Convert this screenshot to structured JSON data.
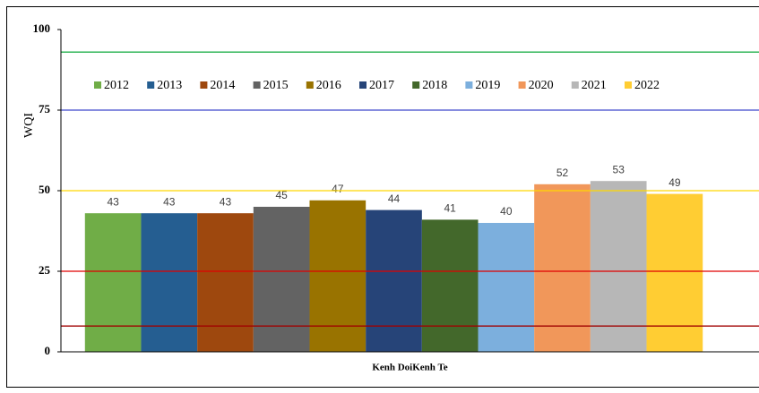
{
  "chart_data": {
    "type": "bar",
    "y_label": "WQI",
    "categories": [
      "Kenh DoiKenh Te"
    ],
    "series": [
      {
        "name": "2012",
        "color": "#70ad47",
        "values": [
          43
        ]
      },
      {
        "name": "2013",
        "color": "#255e91",
        "values": [
          43
        ]
      },
      {
        "name": "2014",
        "color": "#9e480e",
        "values": [
          43
        ]
      },
      {
        "name": "2015",
        "color": "#636363",
        "values": [
          45
        ]
      },
      {
        "name": "2016",
        "color": "#997300",
        "values": [
          47
        ]
      },
      {
        "name": "2017",
        "color": "#264478",
        "values": [
          44
        ]
      },
      {
        "name": "2018",
        "color": "#43682b",
        "values": [
          41
        ]
      },
      {
        "name": "2019",
        "color": "#7cafdd",
        "values": [
          40
        ]
      },
      {
        "name": "2020",
        "color": "#f1975a",
        "values": [
          52
        ]
      },
      {
        "name": "2021",
        "color": "#b7b7b7",
        "values": [
          53
        ]
      },
      {
        "name": "2022",
        "color": "#ffcd33",
        "values": [
          49
        ]
      }
    ],
    "reference_lines": [
      {
        "value": 93,
        "color": "#22b14c"
      },
      {
        "value": 75,
        "color": "#3f48cc"
      },
      {
        "value": 50,
        "color": "#ffd700"
      },
      {
        "value": 25,
        "color": "#e00000"
      },
      {
        "value": 8,
        "color": "#a00000"
      }
    ],
    "ylim": [
      0,
      100
    ],
    "yticks": [
      0,
      25,
      50,
      75,
      100
    ],
    "legend": "top"
  }
}
